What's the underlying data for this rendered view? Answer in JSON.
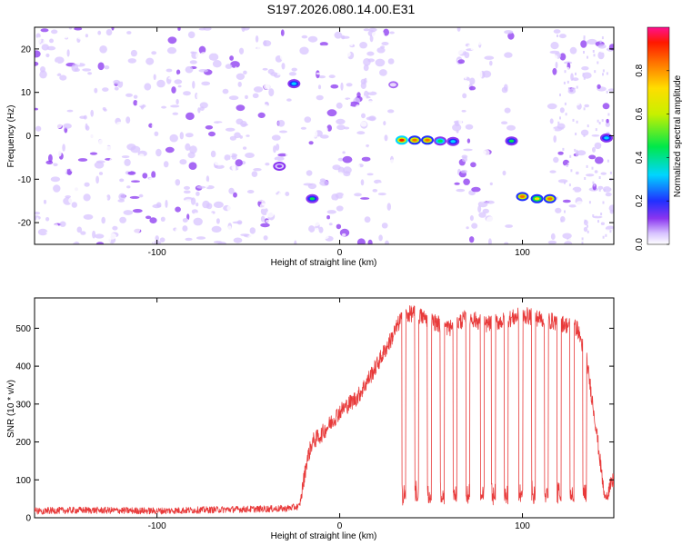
{
  "title": "S197.2026.080.14.00.E31",
  "chart_data": [
    {
      "type": "heatmap",
      "xlabel": "Height of straight line (km)",
      "ylabel": "Frequency (Hz)",
      "xlim": [
        -167,
        150
      ],
      "ylim": [
        -25,
        25
      ],
      "xticks": [
        -100,
        0,
        100
      ],
      "yticks": [
        -20,
        -10,
        0,
        10,
        20
      ],
      "colorbar": {
        "label": "Normalized spectral amplitude",
        "range": [
          0,
          1
        ],
        "ticks": [
          0.0,
          0.2,
          0.4,
          0.6,
          0.8
        ]
      },
      "features": [
        {
          "x": -25,
          "freq": 12,
          "amplitude": 0.35
        },
        {
          "x": -33,
          "freq": -7,
          "amplitude": 0.15
        },
        {
          "x": -15,
          "freq": -14.5,
          "amplitude": 0.45
        },
        {
          "x": 34,
          "freq": -1,
          "amplitude": 0.95
        },
        {
          "x": 41,
          "freq": -1,
          "amplitude": 0.9
        },
        {
          "x": 48,
          "freq": -1,
          "amplitude": 0.9
        },
        {
          "x": 55,
          "freq": -1.2,
          "amplitude": 0.55
        },
        {
          "x": 62,
          "freq": -1.3,
          "amplitude": 0.4
        },
        {
          "x": 94,
          "freq": -1.2,
          "amplitude": 0.45
        },
        {
          "x": 100,
          "freq": -14,
          "amplitude": 0.9
        },
        {
          "x": 108,
          "freq": -14.5,
          "amplitude": 0.75
        },
        {
          "x": 115,
          "freq": -14.5,
          "amplitude": 0.9
        },
        {
          "x": 146,
          "freq": -0.5,
          "amplitude": 0.4
        }
      ]
    },
    {
      "type": "line",
      "xlabel": "Height of straight line (km)",
      "ylabel": "SNR (10 * v/v)",
      "xlim": [
        -167,
        150
      ],
      "ylim": [
        0,
        580
      ],
      "xticks": [
        -100,
        0,
        100
      ],
      "yticks": [
        0,
        100,
        200,
        300,
        400,
        500
      ],
      "series": [
        {
          "name": "SNR",
          "color": "#e83a3a",
          "x": [
            -167,
            -140,
            -100,
            -60,
            -30,
            -22,
            -18,
            -15,
            -10,
            0,
            10,
            20,
            28,
            34,
            40,
            50,
            60,
            70,
            80,
            90,
            100,
            110,
            120,
            130,
            135,
            140,
            145,
            150
          ],
          "y": [
            18,
            20,
            18,
            22,
            24,
            30,
            150,
            200,
            220,
            280,
            320,
            400,
            470,
            530,
            540,
            520,
            500,
            530,
            510,
            520,
            535,
            525,
            515,
            500,
            420,
            250,
            50,
            100
          ]
        }
      ],
      "dropouts": [
        34,
        41,
        48,
        55,
        62,
        69,
        77,
        83,
        90,
        98,
        105,
        112,
        119,
        126,
        133
      ]
    }
  ]
}
